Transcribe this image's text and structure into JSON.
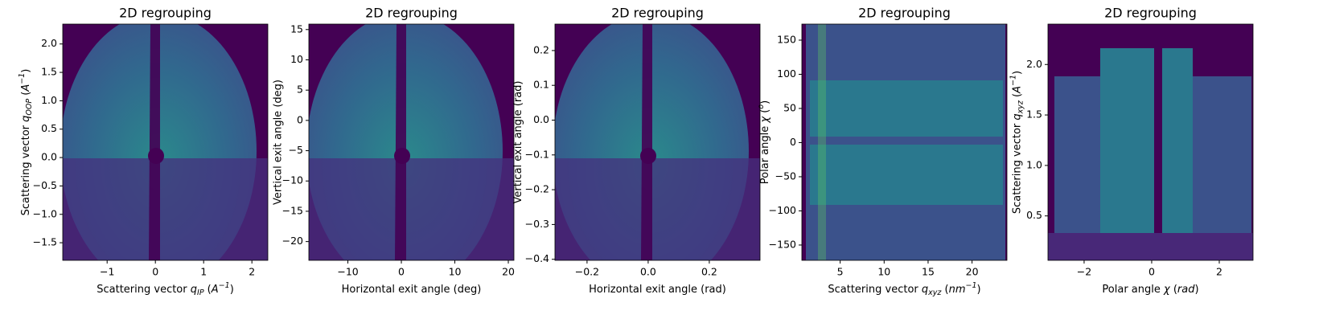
{
  "chart_data": [
    {
      "type": "image",
      "title": "2D regrouping",
      "xlabel": [
        {
          "text": "Scattering vector "
        },
        {
          "text": "q",
          "style": "i"
        },
        {
          "text": "IP",
          "style": "sub"
        },
        {
          "text": " ("
        },
        {
          "text": "A",
          "style": "i"
        },
        {
          "text": "−1",
          "style": "sup"
        },
        {
          "text": ")"
        }
      ],
      "ylabel": [
        {
          "text": "Scattering vector "
        },
        {
          "text": "q",
          "style": "i"
        },
        {
          "text": "OOP",
          "style": "sub"
        },
        {
          "text": " ("
        },
        {
          "text": "A",
          "style": "i"
        },
        {
          "text": "−1",
          "style": "sup"
        },
        {
          "text": ")"
        }
      ],
      "xlim": [
        -1.92,
        2.33
      ],
      "ylim": [
        -1.81,
        2.35
      ],
      "xticks": [
        {
          "value": -1,
          "label": "−1"
        },
        0,
        1,
        2
      ],
      "yticks": [
        {
          "value": -1.5,
          "label": "−1.5"
        },
        {
          "value": -1.0,
          "label": "−1.0"
        },
        {
          "value": -0.5,
          "label": "−0.5"
        },
        {
          "value": 0,
          "label": "0.0"
        },
        0.5,
        {
          "value": 1,
          "label": "1.0"
        },
        1.5,
        {
          "value": 2,
          "label": "2.0"
        }
      ]
    },
    {
      "type": "image",
      "title": "2D regrouping",
      "xlabel": [
        {
          "text": "Horizontal exit angle (deg)"
        }
      ],
      "ylabel": [
        {
          "text": "Vertical exit angle (deg)"
        }
      ],
      "xlim": [
        -17.3,
        21.05
      ],
      "ylim": [
        -23.1,
        15.9
      ],
      "xticks": [
        {
          "value": -10,
          "label": "−10"
        },
        0,
        10,
        20
      ],
      "yticks": [
        {
          "value": -20,
          "label": "−20"
        },
        {
          "value": -15,
          "label": "−15"
        },
        {
          "value": -10,
          "label": "−10"
        },
        {
          "value": -5,
          "label": "−5"
        },
        0,
        5,
        10,
        15
      ]
    },
    {
      "type": "image",
      "title": "2D regrouping",
      "xlabel": [
        {
          "text": "Horizontal exit angle (rad)"
        }
      ],
      "ylabel": [
        {
          "text": "Vertical exit angle (rad)"
        }
      ],
      "xlim": [
        -0.305,
        0.366
      ],
      "ylim": [
        -0.403,
        0.276
      ],
      "xticks": [
        {
          "value": -0.2,
          "label": "−0.2"
        },
        {
          "value": 0,
          "label": "0.0"
        },
        0.2
      ],
      "yticks": [
        {
          "value": -0.4,
          "label": "−0.4"
        },
        {
          "value": -0.3,
          "label": "−0.3"
        },
        {
          "value": -0.2,
          "label": "−0.2"
        },
        {
          "value": -0.1,
          "label": "−0.1"
        },
        {
          "value": 0,
          "label": "0.0"
        },
        0.1,
        0.2
      ]
    },
    {
      "type": "image",
      "title": "2D regrouping",
      "xlabel": [
        {
          "text": "Scattering vector "
        },
        {
          "text": "q",
          "style": "i"
        },
        {
          "text": "xyz",
          "style": "sub"
        },
        {
          "text": " ("
        },
        {
          "text": "nm",
          "style": "i"
        },
        {
          "text": "−1",
          "style": "sup"
        },
        {
          "text": ")"
        }
      ],
      "ylabel": [
        {
          "text": "Polar angle "
        },
        {
          "text": "χ",
          "style": "i"
        },
        {
          "text": " ("
        },
        {
          "text": "o",
          "style": "sup"
        },
        {
          "text": ")"
        }
      ],
      "xlim": [
        0.64,
        23.97
      ],
      "ylim": [
        -172.4,
        173.5
      ],
      "xticks": [
        5,
        10,
        15,
        20
      ],
      "yticks": [
        {
          "value": -150,
          "label": "−150"
        },
        {
          "value": -100,
          "label": "−100"
        },
        {
          "value": -50,
          "label": "−50"
        },
        0,
        50,
        100,
        150
      ]
    },
    {
      "type": "image",
      "title": "2D regrouping",
      "xlabel": [
        {
          "text": "Polar angle "
        },
        {
          "text": "χ",
          "style": "i"
        },
        {
          "text": " ("
        },
        {
          "text": "rad",
          "style": "i"
        },
        {
          "text": ")"
        }
      ],
      "ylabel": [
        {
          "text": "Scattering vector "
        },
        {
          "text": "q",
          "style": "i"
        },
        {
          "text": "xyz",
          "style": "sub"
        },
        {
          "text": " ("
        },
        {
          "text": "A",
          "style": "i"
        },
        {
          "text": "−1",
          "style": "sup"
        },
        {
          "text": ")"
        }
      ],
      "xlim": [
        -3.07,
        3.0
      ],
      "ylim": [
        0.06,
        2.4
      ],
      "xticks": [
        {
          "value": -2,
          "label": "−2"
        },
        0,
        2
      ],
      "yticks": [
        0.5,
        {
          "value": 1,
          "label": "1.0"
        },
        1.5,
        {
          "value": 2,
          "label": "2.0"
        }
      ]
    }
  ]
}
